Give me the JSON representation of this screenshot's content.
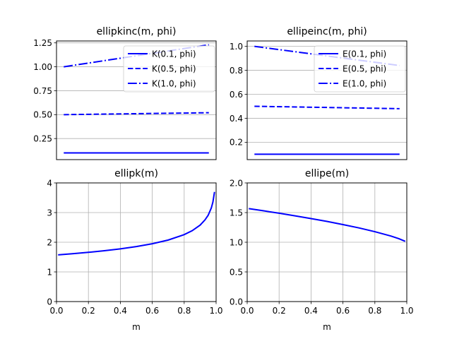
{
  "chart_data": [
    {
      "type": "line",
      "title": "ellipkinc(m, phi)",
      "xlabel": "",
      "ylabel": "",
      "xlim": [
        -0.05,
        1.05
      ],
      "ylim": [
        0.03,
        1.27
      ],
      "grid": "y",
      "yticks": [
        0.25,
        0.5,
        0.75,
        1.0,
        1.25
      ],
      "ytick_labels": [
        "0.25",
        "0.50",
        "0.75",
        "1.00",
        "1.25"
      ],
      "xticks": [],
      "legend": "top-right",
      "series": [
        {
          "name": "K(0.1, phi)",
          "color": "#0000ff",
          "dash": "solid",
          "x": [
            0,
            1
          ],
          "y": [
            0.1,
            0.1
          ]
        },
        {
          "name": "K(0.5, phi)",
          "color": "#0000ff",
          "dash": "dashed",
          "x": [
            0,
            1
          ],
          "y": [
            0.5,
            0.52
          ]
        },
        {
          "name": "K(1.0, phi)",
          "color": "#0000ff",
          "dash": "dashdot",
          "x": [
            0,
            1
          ],
          "y": [
            1.0,
            1.23
          ]
        }
      ]
    },
    {
      "type": "line",
      "title": "ellipeinc(m, phi)",
      "xlabel": "",
      "ylabel": "",
      "xlim": [
        -0.05,
        1.05
      ],
      "ylim": [
        0.055,
        1.045
      ],
      "grid": "y",
      "yticks": [
        0.2,
        0.4,
        0.6,
        0.8,
        1.0
      ],
      "ytick_labels": [
        "0.2",
        "0.4",
        "0.6",
        "0.8",
        "1.0"
      ],
      "xticks": [],
      "legend": "top-right",
      "series": [
        {
          "name": "E(0.1, phi)",
          "color": "#0000ff",
          "dash": "solid",
          "x": [
            0,
            1
          ],
          "y": [
            0.1,
            0.1
          ]
        },
        {
          "name": "E(0.5, phi)",
          "color": "#0000ff",
          "dash": "dashed",
          "x": [
            0,
            1
          ],
          "y": [
            0.5,
            0.48
          ]
        },
        {
          "name": "E(1.0, phi)",
          "color": "#0000ff",
          "dash": "dashdot",
          "x": [
            0,
            1
          ],
          "y": [
            1.0,
            0.84
          ]
        }
      ]
    },
    {
      "type": "line",
      "title": "ellipk(m)",
      "xlabel": "m",
      "ylabel": "",
      "xlim": [
        0,
        1
      ],
      "ylim": [
        0,
        4
      ],
      "grid": "both",
      "yticks": [
        0,
        1,
        2,
        3,
        4
      ],
      "ytick_labels": [
        "0",
        "1",
        "2",
        "3",
        "4"
      ],
      "xticks": [
        0,
        0.2,
        0.4,
        0.6,
        0.8,
        1.0
      ],
      "xtick_labels": [
        "0.0",
        "0.2",
        "0.4",
        "0.6",
        "0.8",
        "1.0"
      ],
      "legend": "none",
      "series": [
        {
          "color": "#0000ff",
          "dash": "solid",
          "x": [
            0.01,
            0.1,
            0.2,
            0.3,
            0.4,
            0.5,
            0.6,
            0.7,
            0.8,
            0.85,
            0.9,
            0.93,
            0.95,
            0.97,
            0.98,
            0.99
          ],
          "y": [
            1.575,
            1.612,
            1.66,
            1.714,
            1.778,
            1.854,
            1.95,
            2.075,
            2.257,
            2.389,
            2.578,
            2.752,
            2.908,
            3.156,
            3.357,
            3.696
          ]
        }
      ]
    },
    {
      "type": "line",
      "title": "ellipe(m)",
      "xlabel": "m",
      "ylabel": "",
      "xlim": [
        0,
        1
      ],
      "ylim": [
        0,
        2
      ],
      "grid": "both",
      "yticks": [
        0,
        0.5,
        1.0,
        1.5,
        2.0
      ],
      "ytick_labels": [
        "0.0",
        "0.5",
        "1.0",
        "1.5",
        "2.0"
      ],
      "xticks": [
        0,
        0.2,
        0.4,
        0.6,
        0.8,
        1.0
      ],
      "xtick_labels": [
        "0.0",
        "0.2",
        "0.4",
        "0.6",
        "0.8",
        "1.0"
      ],
      "legend": "none",
      "series": [
        {
          "color": "#0000ff",
          "dash": "solid",
          "x": [
            0.01,
            0.1,
            0.2,
            0.3,
            0.4,
            0.5,
            0.6,
            0.7,
            0.8,
            0.9,
            0.95,
            0.99
          ],
          "y": [
            1.567,
            1.531,
            1.489,
            1.445,
            1.399,
            1.351,
            1.298,
            1.242,
            1.178,
            1.105,
            1.06,
            1.016
          ]
        }
      ]
    }
  ]
}
